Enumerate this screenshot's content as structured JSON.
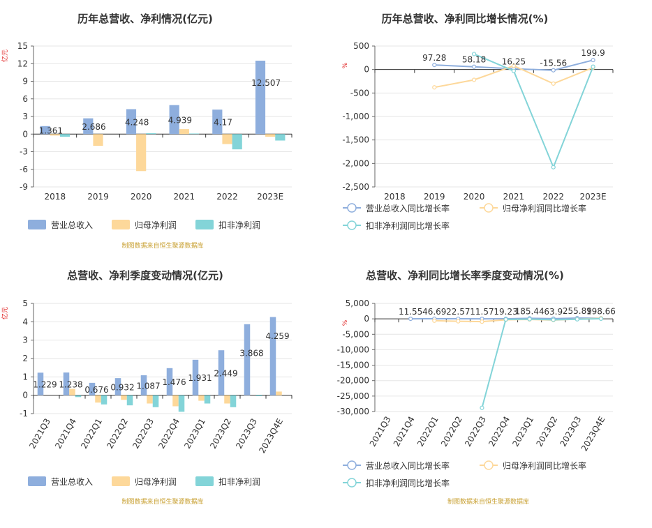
{
  "colors": {
    "revenue": "#8eaedd",
    "net": "#fdd89a",
    "deduct": "#83d4d8",
    "axis": "#666666",
    "grid": "#e6e6e6",
    "source": "#c8a032",
    "unit": "#e02020"
  },
  "chart_data": [
    {
      "type": "bar",
      "title": "历年总营收、净利情况(亿元)",
      "unit_label": "亿元",
      "source": "制图数据来自恒生聚源数据库",
      "categories": [
        "2018",
        "2019",
        "2020",
        "2021",
        "2022",
        "2023E"
      ],
      "ylim": [
        -9,
        15
      ],
      "yticks": [
        15,
        12,
        9,
        6,
        3,
        0,
        -3,
        -6,
        -9
      ],
      "grid": true,
      "legend": "bottom-left",
      "series": [
        {
          "name": "营业总收入",
          "values": [
            1.361,
            2.686,
            4.248,
            4.939,
            4.17,
            12.507
          ],
          "labels": [
            "1.361",
            "2.686",
            "4.248",
            "4.939",
            "4.17",
            "12.507"
          ]
        },
        {
          "name": "归母净利润",
          "values": [
            -0.25,
            -2.0,
            -6.3,
            0.85,
            -1.7,
            -0.45
          ]
        },
        {
          "name": "扣非净利润",
          "values": [
            -0.45,
            null,
            0.15,
            0.1,
            -2.6,
            -1.1
          ]
        }
      ]
    },
    {
      "type": "line",
      "title": "历年总营收、净利同比增长情况(%)",
      "unit_label": "%",
      "source": "",
      "categories": [
        "2018",
        "2019",
        "2020",
        "2021",
        "2022",
        "2023E"
      ],
      "ylim": [
        -2500,
        500
      ],
      "yticks": [
        "500",
        "0",
        "-500",
        "-1,000",
        "-1,500",
        "-2,000",
        "-2,500"
      ],
      "ytick_values": [
        500,
        0,
        -500,
        -1000,
        -1500,
        -2000,
        -2500
      ],
      "grid": true,
      "legend": "bottom-left",
      "series": [
        {
          "name": "营业总收入同比增长率",
          "values": [
            null,
            97.28,
            58.18,
            16.25,
            -15.56,
            199.9
          ],
          "labels": [
            "",
            "97.28",
            "58.18",
            "16.25",
            "-15.56",
            "199.9"
          ]
        },
        {
          "name": "归母净利润同比增长率",
          "values": [
            null,
            -380,
            -220,
            80,
            -300,
            40
          ]
        },
        {
          "name": "扣非净利润同比增长率",
          "values": [
            null,
            null,
            330,
            -30,
            -2080,
            60
          ]
        }
      ]
    },
    {
      "type": "bar",
      "title": "总营收、净利季度变动情况(亿元)",
      "unit_label": "亿元",
      "source": "制图数据来自恒生聚源数据库",
      "categories": [
        "2021Q3",
        "2021Q4",
        "2022Q1",
        "2022Q2",
        "2022Q3",
        "2022Q4",
        "2023Q1",
        "2023Q2",
        "2023Q3",
        "2023Q4E"
      ],
      "ylim": [
        -1,
        5
      ],
      "yticks": [
        5,
        4,
        3,
        2,
        1,
        0,
        -1
      ],
      "grid": true,
      "legend": "bottom-left",
      "series": [
        {
          "name": "营业总收入",
          "values": [
            1.229,
            1.238,
            0.676,
            0.932,
            1.087,
            1.476,
            1.931,
            2.449,
            3.868,
            4.259
          ],
          "labels": [
            "1.229",
            "1.238",
            "0.676",
            "0.932",
            "1.087",
            "1.476",
            "1.931",
            "2.449",
            "3.868",
            "4.259"
          ]
        },
        {
          "name": "归母净利润",
          "values": [
            null,
            0.35,
            -0.4,
            -0.25,
            -0.45,
            -0.6,
            -0.3,
            -0.45,
            null,
            0.2
          ]
        },
        {
          "name": "扣非净利润",
          "values": [
            null,
            -0.1,
            -0.5,
            -0.55,
            -0.65,
            -0.9,
            -0.45,
            -0.65,
            -0.05,
            null
          ]
        }
      ]
    },
    {
      "type": "line",
      "title": "总营收、净利同比增长率季度变动情况(%)",
      "unit_label": "%",
      "source": "制图数据来自恒生聚源数据库",
      "categories": [
        "2021Q3",
        "2021Q4",
        "2022Q1",
        "2022Q2",
        "2022Q3",
        "2022Q4",
        "2023Q1",
        "2023Q2",
        "2023Q3",
        "2023Q4E"
      ],
      "ylim": [
        -30000,
        5000
      ],
      "yticks": [
        "5,000",
        "0",
        "-5,000",
        "-10,000",
        "-15,000",
        "-20,000",
        "-25,000",
        "-30,000"
      ],
      "ytick_values": [
        5000,
        0,
        -5000,
        -10000,
        -15000,
        -20000,
        -25000,
        -30000
      ],
      "grid": true,
      "legend": "bottom-left",
      "series": [
        {
          "name": "营业总收入同比增长率",
          "values": [
            null,
            11.55,
            46.69,
            22.57,
            11.57,
            19.23,
            185.44,
            63.9,
            255.89,
            198.66
          ],
          "labels": [
            "",
            "11.55",
            "46.69",
            "22.57",
            "11.57",
            "19.23",
            "185.44",
            "63.9",
            "255.89",
            "198.66"
          ]
        },
        {
          "name": "归母净利润同比增长率",
          "values": [
            null,
            null,
            -600,
            -800,
            -900,
            -300,
            -200,
            -400,
            -100,
            200
          ]
        },
        {
          "name": "扣非净利润同比增长率",
          "values": [
            null,
            null,
            null,
            null,
            -28800,
            -200,
            -100,
            -300,
            -150,
            50
          ]
        }
      ]
    }
  ]
}
